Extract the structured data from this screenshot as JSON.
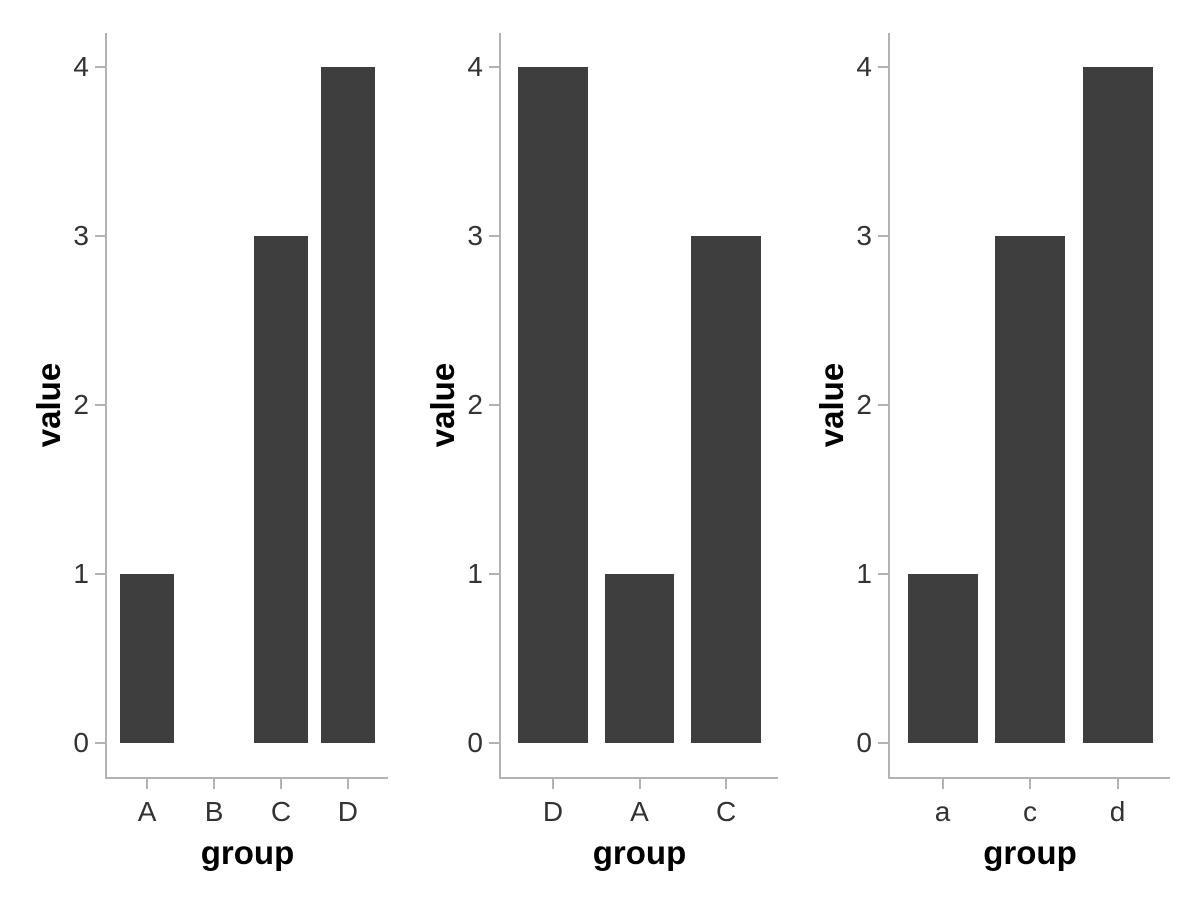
{
  "figure": {
    "background": "#ffffff",
    "bar_color": "#3e3e3e",
    "axis_color": "#b3b3b3",
    "tick_label_color": "#333333",
    "axis_title_color": "#000000"
  },
  "chart_data": [
    {
      "type": "bar",
      "title": "",
      "xlabel": "group",
      "ylabel": "value",
      "categories": [
        "A",
        "B",
        "C",
        "D"
      ],
      "values": [
        1,
        0,
        3,
        4
      ],
      "ylim": [
        0,
        4
      ],
      "yticks": [
        0,
        1,
        2,
        3,
        4
      ],
      "grid": false,
      "legend": "none"
    },
    {
      "type": "bar",
      "title": "",
      "xlabel": "group",
      "ylabel": "value",
      "categories": [
        "D",
        "A",
        "C"
      ],
      "values": [
        4,
        1,
        3
      ],
      "ylim": [
        0,
        4
      ],
      "yticks": [
        0,
        1,
        2,
        3,
        4
      ],
      "grid": false,
      "legend": "none"
    },
    {
      "type": "bar",
      "title": "",
      "xlabel": "group",
      "ylabel": "value",
      "categories": [
        "a",
        "c",
        "d"
      ],
      "values": [
        1,
        3,
        4
      ],
      "ylim": [
        0,
        4
      ],
      "yticks": [
        0,
        1,
        2,
        3,
        4
      ],
      "grid": false,
      "legend": "none"
    }
  ]
}
